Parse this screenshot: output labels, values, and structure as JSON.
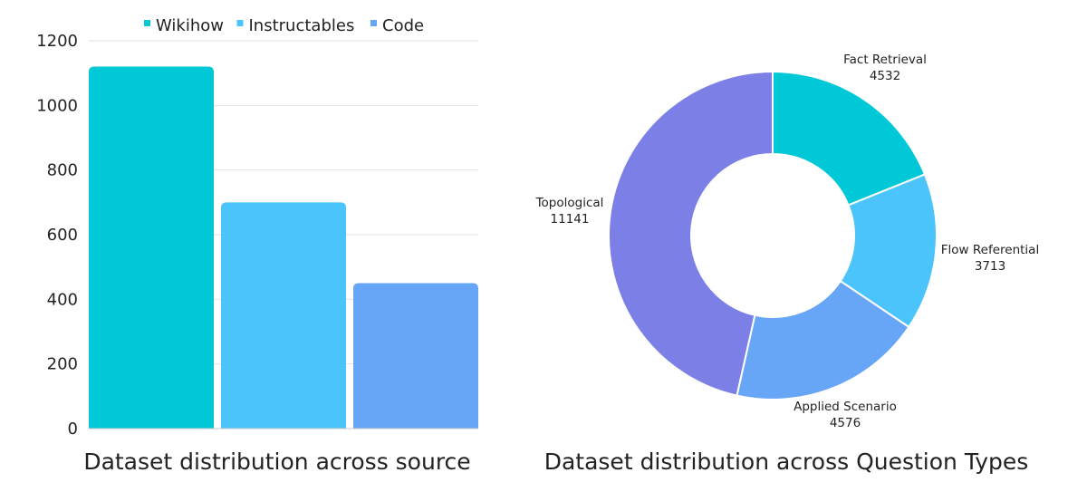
{
  "chart_data": [
    {
      "type": "bar",
      "title": "Dataset distribution across source",
      "categories": [
        "Wikihow",
        "Instructables",
        "Code"
      ],
      "values": [
        1120,
        700,
        450
      ],
      "colors": [
        "#00c8d7",
        "#4bc4fb",
        "#67a5f7"
      ],
      "ylim": [
        0,
        1200
      ],
      "yticks": [
        0,
        200,
        400,
        600,
        800,
        1000,
        1200
      ],
      "grid": true,
      "legend": {
        "position": "top",
        "entries": [
          "Wikihow",
          "Instructables",
          "Code"
        ]
      }
    },
    {
      "type": "pie",
      "subtype": "donut",
      "title": "Dataset distribution across Question Types",
      "slices": [
        {
          "label": "Fact Retrieval",
          "value": 4532,
          "color": "#00c8d7"
        },
        {
          "label": "Flow Referential",
          "value": 3713,
          "color": "#4bc4fb"
        },
        {
          "label": "Applied Scenario",
          "value": 4576,
          "color": "#67a5f7"
        },
        {
          "label": "Topological",
          "value": 11141,
          "color": "#7c80e6"
        }
      ]
    }
  ]
}
